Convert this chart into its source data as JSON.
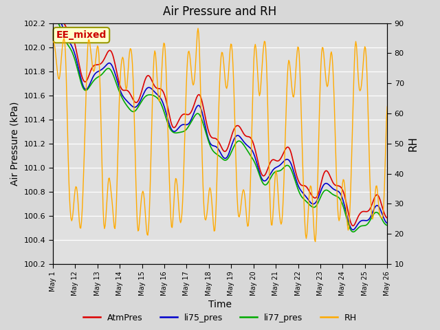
{
  "title": "Air Pressure and RH",
  "xlabel": "Time",
  "ylabel_left": "Air Pressure (kPa)",
  "ylabel_right": "RH",
  "ylim_left": [
    100.2,
    102.2
  ],
  "ylim_right": [
    10,
    90
  ],
  "yticks_left": [
    100.2,
    100.4,
    100.6,
    100.8,
    101.0,
    101.2,
    101.4,
    101.6,
    101.8,
    102.0,
    102.2
  ],
  "yticks_right": [
    10,
    20,
    30,
    40,
    50,
    60,
    70,
    80,
    90
  ],
  "xtick_positions": [
    0,
    1,
    2,
    3,
    4,
    5,
    6,
    7,
    8,
    9,
    10,
    11,
    12,
    13,
    14,
    15
  ],
  "xtick_labels": [
    "May 1",
    "May 12",
    "May 13",
    "May 14",
    "May 15",
    "May 16",
    "May 17",
    "May 18",
    "May 19",
    "May 20",
    "May 21",
    "May 22",
    "May 23",
    "May 24",
    "May 25",
    "May 26"
  ],
  "color_atm": "#dd0000",
  "color_li75": "#0000cc",
  "color_li77": "#00aa00",
  "color_rh": "#ffaa00",
  "annotation_text": "EE_mixed",
  "annotation_color": "#cc0000",
  "annotation_bg": "#ffffcc",
  "annotation_edge": "#999900",
  "fig_bg_color": "#d8d8d8",
  "plot_bg": "#e0e0e0",
  "legend_labels": [
    "AtmPres",
    "li75_pres",
    "li77_pres",
    "RH"
  ],
  "grid_color": "#ffffff"
}
